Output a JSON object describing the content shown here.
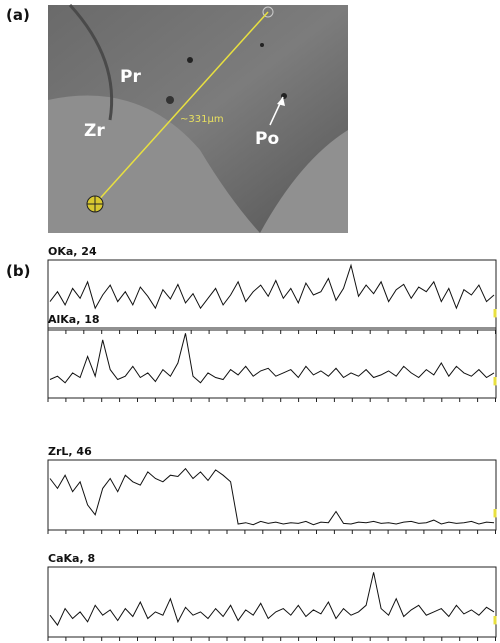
{
  "panel_a": {
    "label": "(a)",
    "regions": [
      "Pr",
      "Zr",
      "Po"
    ],
    "scale": "~331µm"
  },
  "panel_b": {
    "label": "(b)",
    "traces": [
      {
        "name": "OKa, 24",
        "values": [
          40,
          55,
          35,
          60,
          45,
          70,
          30,
          50,
          65,
          40,
          55,
          35,
          62,
          48,
          30,
          58,
          44,
          66,
          38,
          52,
          30,
          45,
          60,
          35,
          50,
          70,
          40,
          55,
          65,
          48,
          72,
          45,
          60,
          38,
          68,
          50,
          55,
          75,
          42,
          60,
          95,
          48,
          65,
          52,
          70,
          40,
          58,
          66,
          45,
          62,
          55,
          70,
          40,
          60,
          30,
          58,
          50,
          65,
          40,
          50
        ]
      },
      {
        "name": "AlKa, 18",
        "values": [
          25,
          30,
          20,
          35,
          28,
          60,
          30,
          85,
          40,
          25,
          30,
          45,
          28,
          35,
          22,
          40,
          30,
          50,
          95,
          30,
          20,
          35,
          28,
          25,
          40,
          32,
          45,
          30,
          38,
          42,
          30,
          35,
          40,
          28,
          45,
          32,
          38,
          30,
          42,
          28,
          35,
          30,
          40,
          28,
          32,
          38,
          30,
          45,
          35,
          28,
          40,
          32,
          50,
          30,
          45,
          35,
          30,
          40,
          28,
          35
        ]
      },
      {
        "name": "ZrL, 46",
        "values": [
          75,
          60,
          80,
          55,
          70,
          35,
          20,
          60,
          75,
          55,
          80,
          70,
          65,
          85,
          75,
          70,
          80,
          78,
          90,
          75,
          85,
          72,
          88,
          80,
          70,
          6,
          8,
          5,
          10,
          7,
          9,
          6,
          8,
          7,
          10,
          5,
          9,
          8,
          25,
          7,
          6,
          9,
          8,
          10,
          7,
          8,
          6,
          9,
          10,
          7,
          8,
          12,
          6,
          9,
          7,
          8,
          10,
          6,
          9,
          8
        ]
      },
      {
        "name": "CaKa, 8",
        "values": [
          30,
          15,
          40,
          25,
          35,
          20,
          45,
          30,
          38,
          22,
          40,
          28,
          50,
          25,
          35,
          30,
          55,
          20,
          42,
          30,
          35,
          25,
          40,
          28,
          45,
          22,
          38,
          30,
          48,
          25,
          35,
          40,
          30,
          45,
          28,
          38,
          32,
          50,
          25,
          40,
          30,
          35,
          45,
          95,
          40,
          30,
          55,
          28,
          38,
          45,
          30,
          35,
          40,
          28,
          45,
          32,
          38,
          30,
          42,
          35
        ]
      }
    ]
  }
}
